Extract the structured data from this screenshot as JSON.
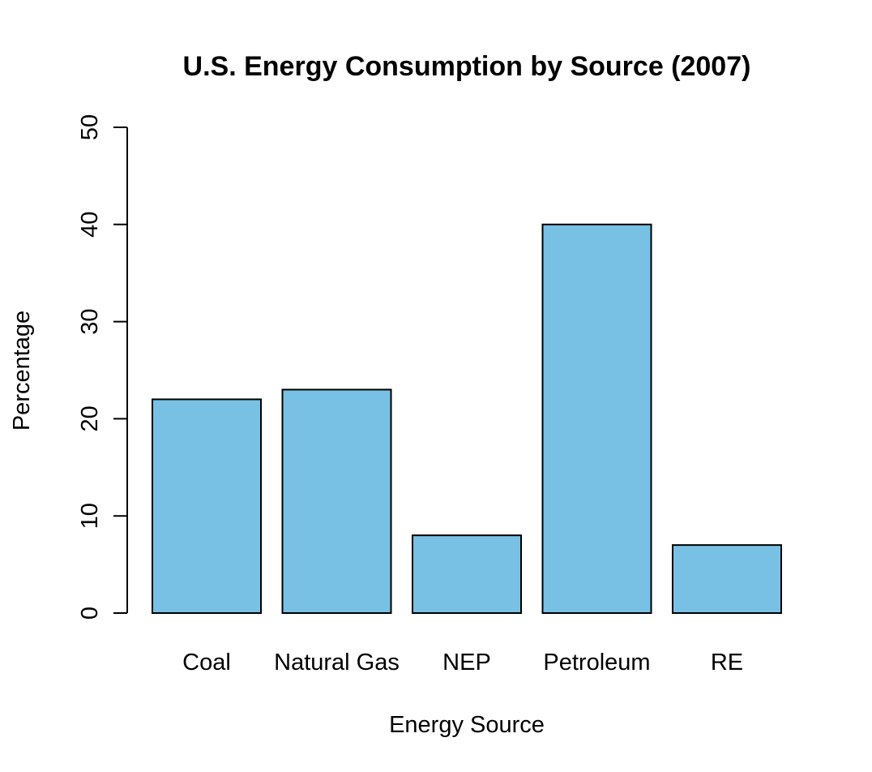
{
  "chart_data": {
    "type": "bar",
    "title": "U.S. Energy Consumption by Source (2007)",
    "xlabel": "Energy Source",
    "ylabel": "Percentage",
    "categories": [
      "Coal",
      "Natural Gas",
      "NEP",
      "Petroleum",
      "RE"
    ],
    "values": [
      22,
      23,
      8,
      40,
      7
    ],
    "ylim": [
      0,
      50
    ],
    "yticks": [
      0,
      10,
      20,
      30,
      40,
      50
    ],
    "bar_color": "#78C1E5",
    "grid": false,
    "legend": "none"
  }
}
